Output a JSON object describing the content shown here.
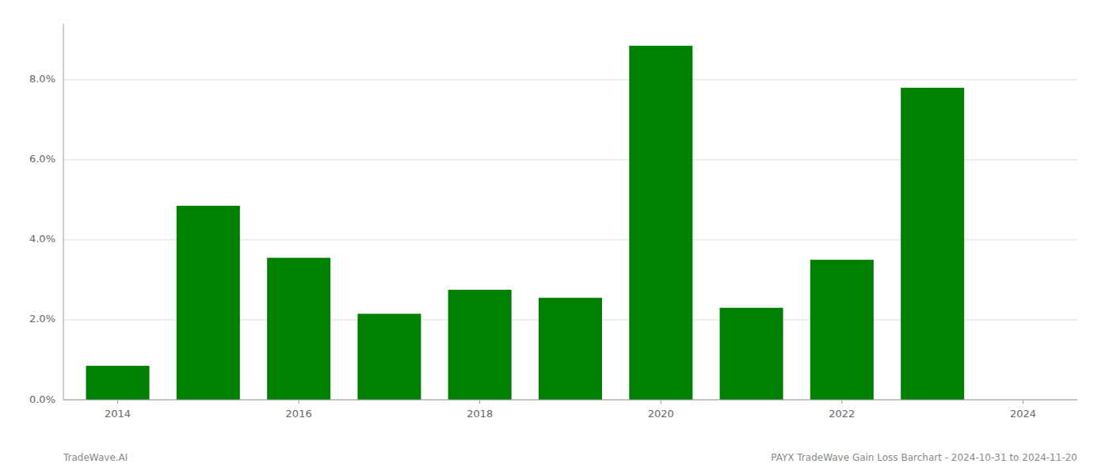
{
  "chart_data": {
    "type": "bar",
    "x": [
      2014,
      2015,
      2016,
      2017,
      2018,
      2019,
      2020,
      2021,
      2022,
      2023
    ],
    "values": [
      0.0085,
      0.0485,
      0.0355,
      0.0215,
      0.0275,
      0.0255,
      0.0885,
      0.023,
      0.035,
      0.078
    ],
    "color": "#008000",
    "xlim": [
      2013.4,
      2024.6
    ],
    "xticks": [
      2014,
      2016,
      2018,
      2020,
      2022,
      2024
    ],
    "ylim": [
      0.0,
      0.094
    ],
    "yticks": [
      {
        "value": 0.0,
        "label": "0.0%"
      },
      {
        "value": 0.02,
        "label": "2.0%"
      },
      {
        "value": 0.04,
        "label": "4.0%"
      },
      {
        "value": 0.06,
        "label": "6.0%"
      },
      {
        "value": 0.08,
        "label": "8.0%"
      }
    ],
    "grid": true,
    "annotations": [
      "TradeWave.AI",
      "PAYX TradeWave Gain Loss Barchart - 2024-10-31 to 2024-11-20"
    ]
  }
}
